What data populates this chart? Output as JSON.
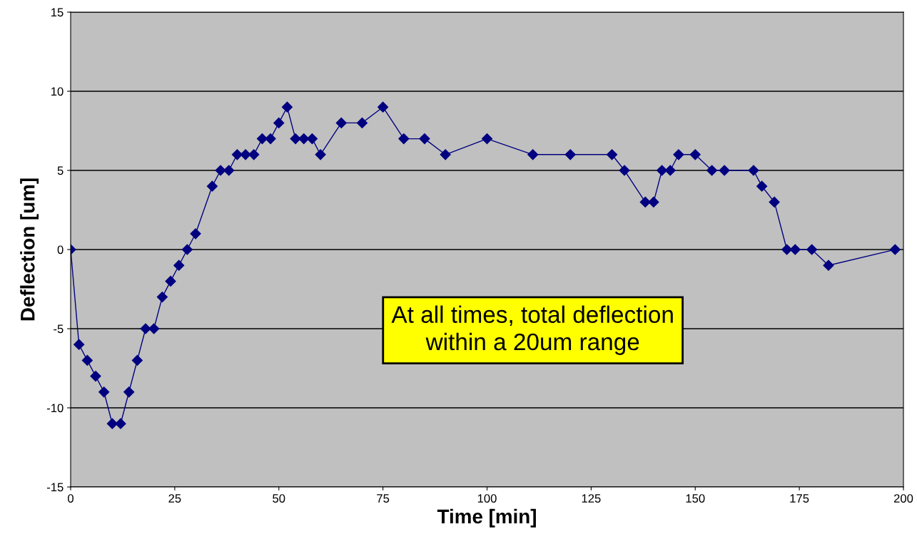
{
  "chart_data": {
    "type": "line",
    "xlabel": "Time [min]",
    "ylabel": "Deflection [um]",
    "x": [
      0,
      2,
      4,
      6,
      8,
      10,
      12,
      14,
      16,
      18,
      20,
      22,
      24,
      26,
      28,
      30,
      34,
      36,
      38,
      40,
      42,
      44,
      46,
      48,
      50,
      52,
      54,
      56,
      58,
      60,
      65,
      70,
      75,
      80,
      85,
      90,
      100,
      111,
      120,
      130,
      133,
      138,
      140,
      142,
      144,
      146,
      150,
      154,
      157,
      164,
      166,
      169,
      172,
      174,
      178,
      182,
      198
    ],
    "series": [
      {
        "color": "#000080",
        "values": [
          0,
          -6,
          -7,
          -8,
          -9,
          -11,
          -11,
          -9,
          -7,
          -5,
          -5,
          -3,
          -2,
          -1,
          0,
          1,
          4,
          5,
          5,
          6,
          6,
          6,
          7,
          7,
          8,
          9,
          7,
          7,
          7,
          6,
          8,
          8,
          9,
          7,
          7,
          6,
          7,
          6,
          6,
          6,
          5,
          3,
          3,
          5,
          5,
          6,
          6,
          5,
          5,
          5,
          4,
          3,
          0,
          0,
          0,
          -1,
          0
        ]
      }
    ],
    "xlim": [
      0,
      200
    ],
    "xticks": [
      0,
      25,
      50,
      75,
      100,
      125,
      150,
      175,
      200
    ],
    "ylim": [
      -15,
      15
    ],
    "yticks": [
      -15,
      -10,
      -5,
      0,
      5,
      10,
      15
    ],
    "grid": "y",
    "marker": "diamond",
    "line_style": "solid",
    "annotations": [
      "At all times, total deflection\nwithin a 20um range"
    ]
  }
}
